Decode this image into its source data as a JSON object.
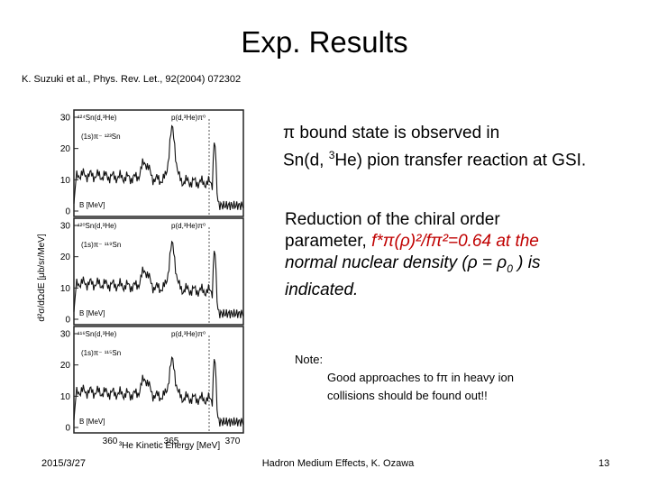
{
  "slide": {
    "title": "Exp. Results",
    "reference": "K. Suzuki et al., Phys. Rev. Let., 92(2004) 072302"
  },
  "text": {
    "p1": {
      "pi": "π",
      "line1": " bound state is observed in",
      "line2_pre": "Sn(d, ",
      "sup3": "3",
      "line2_post": "He) pion transfer reaction at GSI."
    },
    "p2": {
      "line1": "Reduction of the chiral order",
      "line2_pre": "parameter, ",
      "formula": "f*π(ρ)²/fπ²=0.64 at the",
      "line3_pre": "normal",
      "line3_post": " nuclear density (ρ = ρ",
      "sub0": "0",
      "line3_end": " ) is",
      "line4": "indicated."
    },
    "note": {
      "head": "Note:",
      "line1": "Good approaches to fπ in heavy ion",
      "line2": "collisions should be found out!!"
    }
  },
  "figure": {
    "ylabel": "d²σ/dΩdE [μb/sr/MeV]",
    "xlabel": "³He Kinetic Energy [MeV]",
    "x_ticks": [
      "360",
      "365",
      "370"
    ],
    "panels": [
      {
        "reaction": "¹²⁴Sn(d,³He)",
        "state": "(1s)π⁻ ¹²³Sn",
        "right": "p(d,³He)π⁰",
        "yticks": [
          "0",
          "10",
          "20",
          "30"
        ],
        "b": "B [MeV]"
      },
      {
        "reaction": "¹²⁰Sn(d,³He)",
        "state": "(1s)π⁻ ¹¹⁹Sn",
        "right": "p(d,³He)π⁰",
        "yticks": [
          "0",
          "10",
          "20",
          "30"
        ],
        "b": "B [MeV]"
      },
      {
        "reaction": "¹¹⁶Sn(d,³He)",
        "state": "(1s)π⁻ ¹¹⁵Sn",
        "right": "p(d,³He)π⁰",
        "yticks": [
          "0",
          "10",
          "20",
          "30"
        ],
        "b": "B [MeV]"
      }
    ]
  },
  "footer": {
    "date": "2015/3/27",
    "center": "Hadron Medium Effects, K. Ozawa",
    "page": "13"
  }
}
